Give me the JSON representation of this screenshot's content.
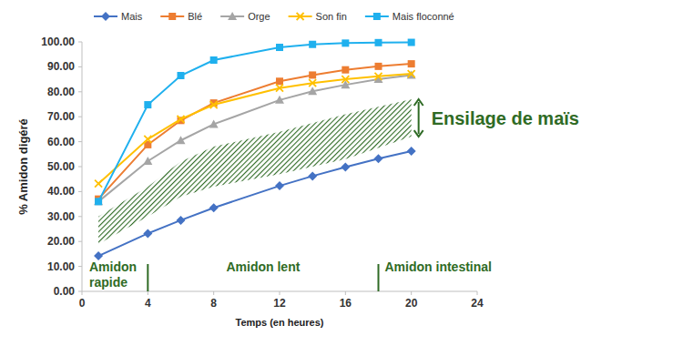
{
  "chart_data": {
    "type": "line",
    "x_label": "Temps (en heures)",
    "y_label": "% Amidon digéré",
    "x": [
      1,
      4,
      6,
      8,
      12,
      14,
      16,
      18,
      20
    ],
    "xlim": [
      0,
      24
    ],
    "xticks": [
      0,
      4,
      8,
      12,
      16,
      20,
      24
    ],
    "ylim": [
      0,
      100
    ],
    "yticks": [
      {
        "value": 0,
        "label": "0.00"
      },
      {
        "value": 10,
        "label": "10.00"
      },
      {
        "value": 20,
        "label": "20.00"
      },
      {
        "value": 30,
        "label": "30.00"
      },
      {
        "value": 40,
        "label": "40.00"
      },
      {
        "value": 50,
        "label": "50.00"
      },
      {
        "value": 60,
        "label": "60.00"
      },
      {
        "value": 70,
        "label": "70.00"
      },
      {
        "value": 80,
        "label": "80.00"
      },
      {
        "value": 90,
        "label": "90.00"
      },
      {
        "value": 100,
        "label": "100.00"
      }
    ],
    "grid": false,
    "legend": "top",
    "series": [
      {
        "name": "Mais",
        "color": "#4472c4",
        "marker": "diamond",
        "values": [
          14.2,
          23.2,
          28.5,
          33.5,
          42.3,
          46.2,
          49.8,
          53.2,
          56.2
        ]
      },
      {
        "name": "Blé",
        "color": "#ed7d31",
        "marker": "square",
        "values": [
          37,
          58.8,
          68.5,
          75.5,
          84.2,
          86.7,
          88.8,
          90.2,
          91.2
        ]
      },
      {
        "name": "Orge",
        "color": "#a5a5a5",
        "marker": "triangle",
        "values": [
          36,
          52.2,
          60.5,
          67,
          76.7,
          80.2,
          82.8,
          85,
          86.7
        ]
      },
      {
        "name": "Son fin",
        "color": "#ffc000",
        "marker": "x",
        "values": [
          43.2,
          61,
          69,
          74.8,
          81.5,
          83.5,
          85,
          86.2,
          87.2
        ]
      },
      {
        "name": "Mais floconné",
        "color": "#1fb0ee",
        "marker": "square",
        "values": [
          36,
          74.8,
          86.5,
          92.7,
          97.8,
          99,
          99.5,
          99.7,
          99.8
        ]
      },
      {
        "name": "Ensilage de maïs",
        "type": "band",
        "color": "#2f6b25",
        "x": [
          1,
          4,
          6,
          8,
          12,
          16,
          20
        ],
        "values": [
          19,
          30,
          38,
          42,
          47,
          53,
          62
        ],
        "high": [
          30,
          42,
          52,
          58,
          64,
          71,
          77
        ]
      }
    ],
    "phases": [
      {
        "label": "Amidon rapide",
        "end": 4
      },
      {
        "label": "Amidon lent",
        "end": 18
      },
      {
        "label": "Amidon intestinal"
      }
    ]
  }
}
